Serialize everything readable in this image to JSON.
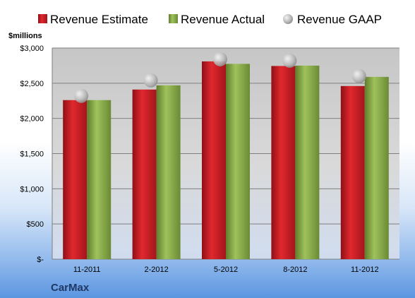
{
  "company": "CarMax",
  "unit_label": "$millions",
  "colors": {
    "estimate": "#cc1f26",
    "actual": "#8fb04f",
    "gaap": "#a9a9a9"
  },
  "chart_data": {
    "type": "bar",
    "categories": [
      "11-2011",
      "2-2012",
      "5-2012",
      "8-2012",
      "11-2012"
    ],
    "series": [
      {
        "name": "Revenue Estimate",
        "type": "bar",
        "values": [
          2260,
          2410,
          2810,
          2745,
          2460
        ]
      },
      {
        "name": "Revenue Actual",
        "type": "bar",
        "values": [
          2260,
          2470,
          2775,
          2750,
          2590
        ]
      },
      {
        "name": "Revenue GAAP",
        "type": "marker",
        "values": [
          2320,
          2540,
          2840,
          2820,
          2600
        ]
      }
    ],
    "yticks": [
      "$-",
      "$500",
      "$1,000",
      "$1,500",
      "$2,000",
      "$2,500",
      "$3,000"
    ],
    "ylim": [
      0,
      3000
    ],
    "legend_position": "top",
    "grid": true
  }
}
